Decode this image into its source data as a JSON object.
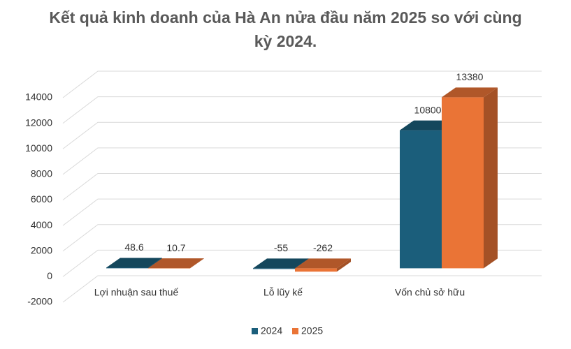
{
  "chart_data": {
    "type": "bar3d",
    "title": "Kết quả kinh doanh của Hà An nửa đầu năm 2025 so với cùng kỳ 2024.",
    "categories": [
      "Lợi nhuận sau thuế",
      "Lỗ lũy kế",
      "Vốn chủ sở hữu"
    ],
    "series": [
      {
        "name": "2024",
        "color": "#1b5e7b",
        "values": [
          48.6,
          -55,
          10800
        ]
      },
      {
        "name": "2025",
        "color": "#ea7436",
        "values": [
          10.7,
          -262,
          13380
        ]
      }
    ],
    "ylim": [
      -2000,
      14000
    ],
    "yticks": [
      -2000,
      0,
      2000,
      4000,
      6000,
      8000,
      10000,
      12000,
      14000
    ],
    "grid": true,
    "legend": "bottom"
  }
}
